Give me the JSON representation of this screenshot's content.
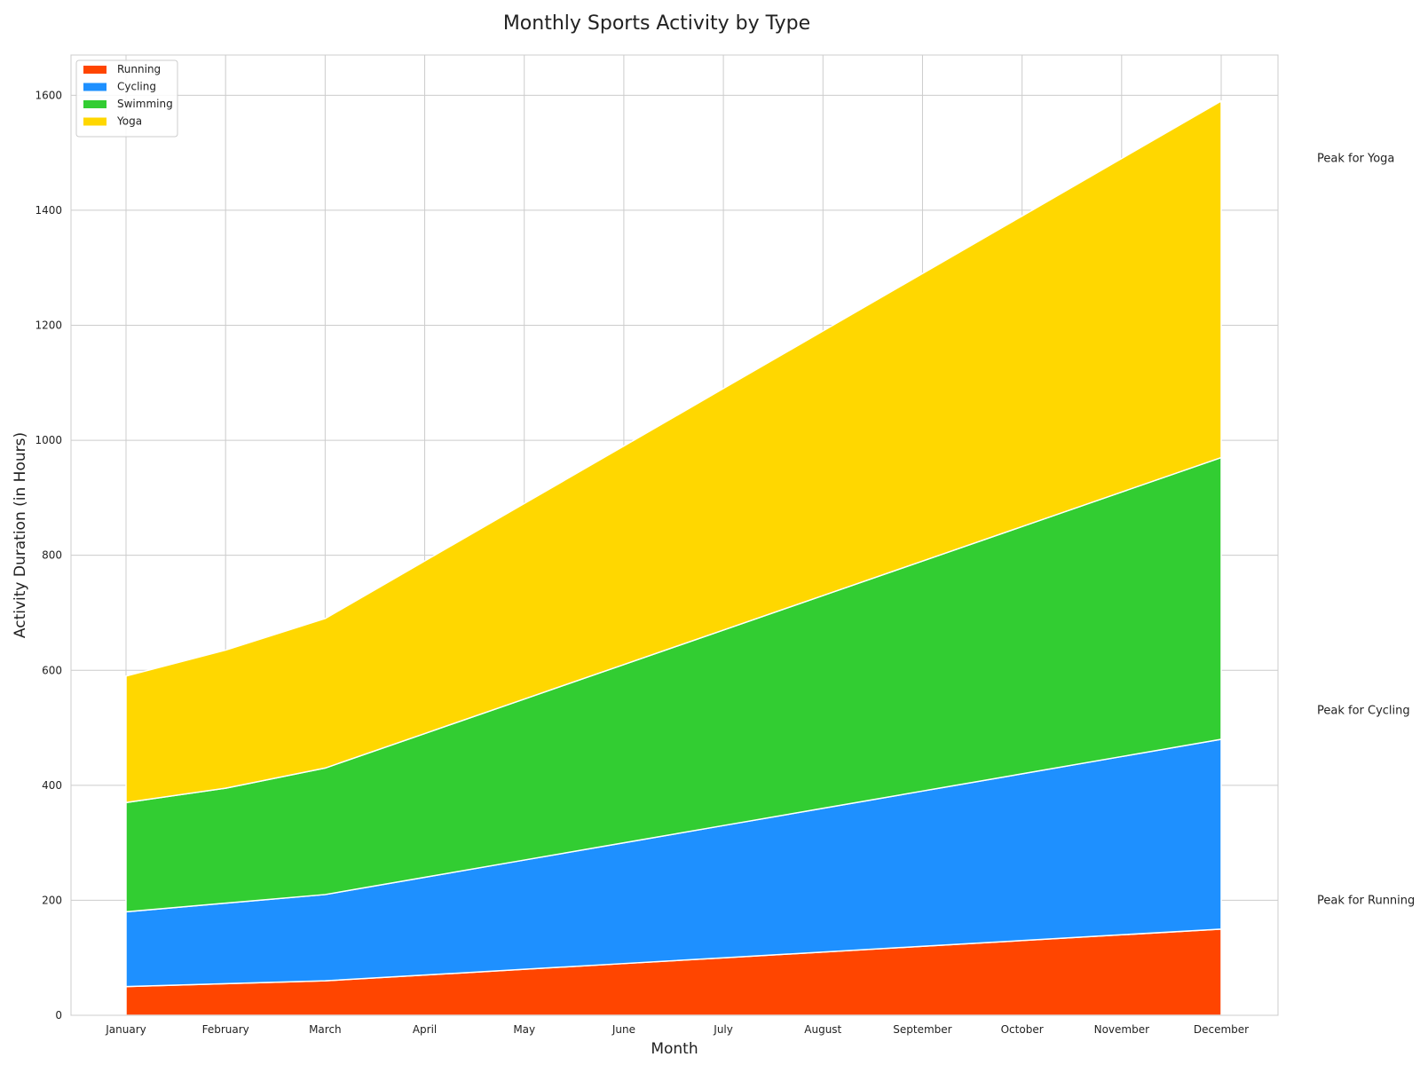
{
  "chart_data": {
    "type": "area",
    "stacked": true,
    "title": "Monthly Sports Activity by Type",
    "xlabel": "Month",
    "ylabel": "Activity Duration (in Hours)",
    "categories": [
      "January",
      "February",
      "March",
      "April",
      "May",
      "June",
      "July",
      "August",
      "September",
      "October",
      "November",
      "December"
    ],
    "ylim": [
      0,
      1670
    ],
    "yticks": [
      0,
      200,
      400,
      600,
      800,
      1000,
      1200,
      1400,
      1600
    ],
    "grid": true,
    "legend_position": "top-left",
    "series": [
      {
        "name": "Running",
        "color": "#FF4500",
        "values": [
          50,
          55,
          60,
          70,
          80,
          90,
          100,
          110,
          120,
          130,
          140,
          150
        ]
      },
      {
        "name": "Cycling",
        "color": "#1E90FF",
        "values": [
          130,
          140,
          150,
          170,
          190,
          210,
          230,
          250,
          270,
          290,
          310,
          330
        ]
      },
      {
        "name": "Swimming",
        "color": "#32CD32",
        "values": [
          190,
          200,
          220,
          250,
          280,
          310,
          340,
          370,
          400,
          430,
          460,
          490
        ]
      },
      {
        "name": "Yoga",
        "color": "#FFD700",
        "values": [
          220,
          240,
          260,
          300,
          340,
          380,
          420,
          460,
          500,
          540,
          580,
          620
        ]
      }
    ],
    "annotations": [
      {
        "text": "Peak for Yoga",
        "value": 1490
      },
      {
        "text": "Peak for Cycling",
        "value": 530
      },
      {
        "text": "Peak for Running",
        "value": 200
      }
    ]
  }
}
